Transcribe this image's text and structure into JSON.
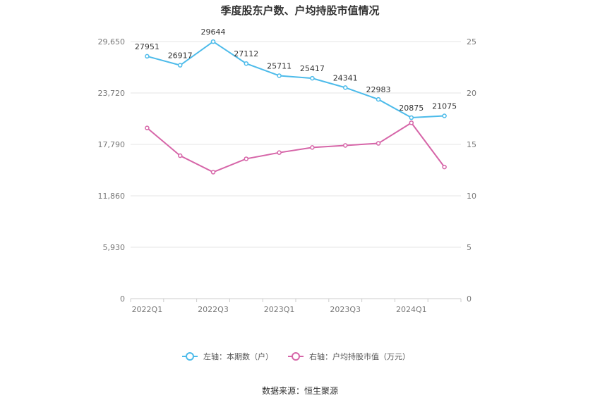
{
  "chart_data": {
    "type": "line",
    "title": "季度股东户数、户均持股市值情况",
    "x": [
      "2022Q1",
      "2022Q2",
      "2022Q3",
      "2022Q4",
      "2023Q1",
      "2023Q2",
      "2023Q3",
      "2023Q4",
      "2024Q1",
      "2024Q2"
    ],
    "x_tick_labels": [
      "2022Q1",
      "2022Q3",
      "2023Q1",
      "2023Q3",
      "2024Q1"
    ],
    "y_left": {
      "ylim": [
        0,
        29650
      ],
      "ticks": [
        0,
        5930,
        11860,
        17790,
        23720,
        29650
      ],
      "tick_labels": [
        "0",
        "5,930",
        "11,860",
        "17,790",
        "23,720",
        "29,650"
      ]
    },
    "y_right": {
      "ylim": [
        0,
        25
      ],
      "ticks": [
        0,
        5,
        10,
        15,
        20,
        25
      ],
      "tick_labels": [
        "0",
        "5",
        "10",
        "15",
        "20",
        "25"
      ]
    },
    "series": [
      {
        "name": "左轴：本期数（户）",
        "axis": "left",
        "color": "#4dbbea",
        "values": [
          27951,
          26917,
          29644,
          27112,
          25711,
          25417,
          24341,
          22983,
          20875,
          21075
        ],
        "labels": [
          "27951",
          "26917",
          "29644",
          "27112",
          "25711",
          "25417",
          "24341",
          "22983",
          "20875",
          "21075"
        ]
      },
      {
        "name": "右轴：户均持股市值（万元）",
        "axis": "right",
        "color": "#d665a8",
        "values": [
          16.6,
          13.9,
          12.3,
          13.6,
          14.2,
          14.7,
          14.9,
          15.1,
          17.1,
          12.8
        ]
      }
    ],
    "grid": true,
    "legend_position": "bottom-center"
  },
  "source_text": "数据来源：恒生聚源"
}
